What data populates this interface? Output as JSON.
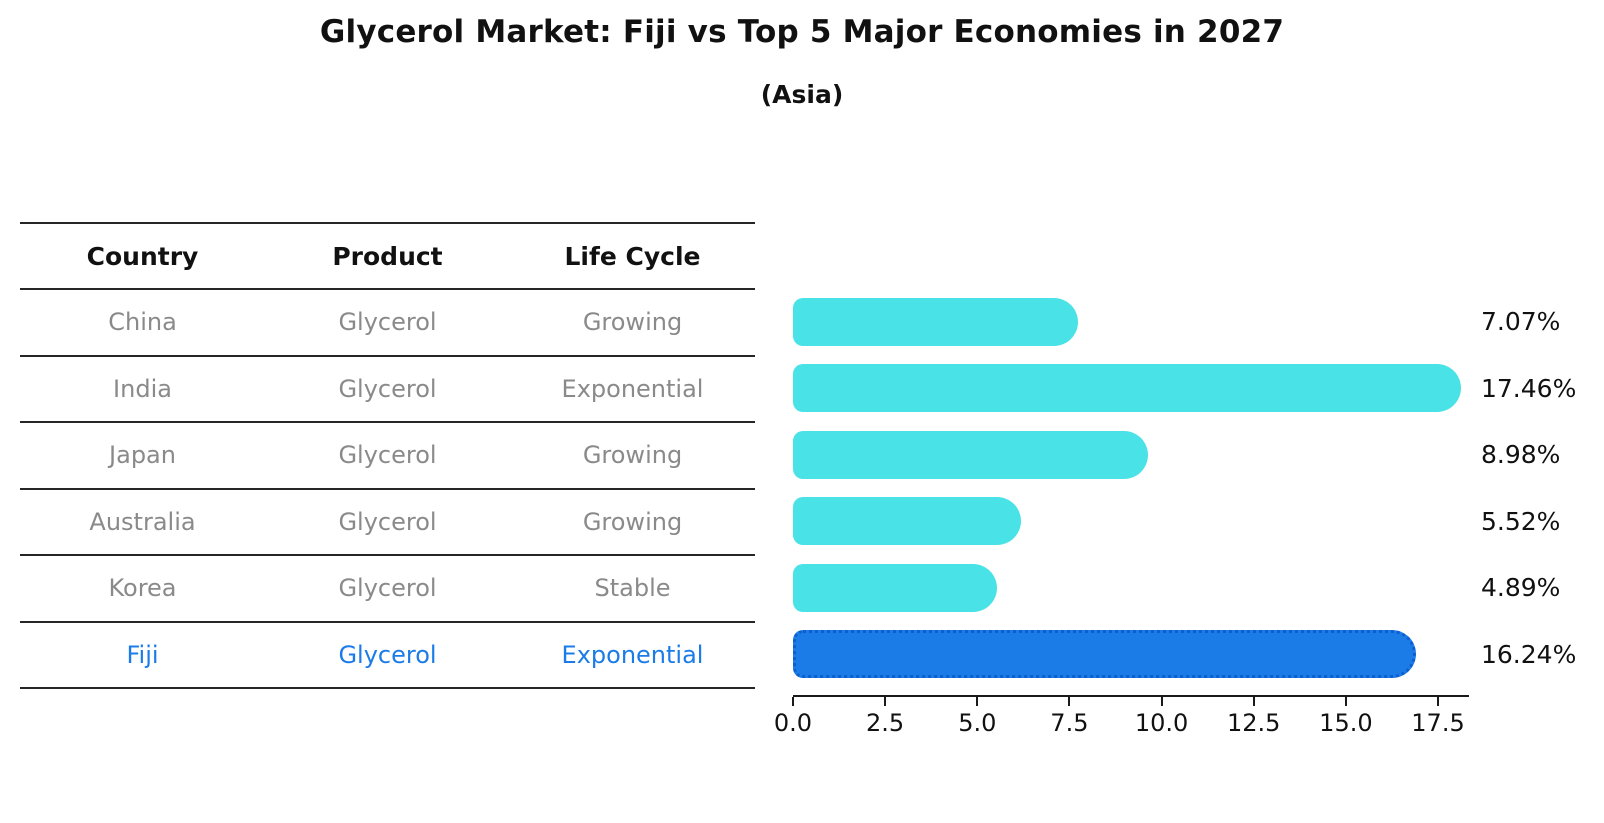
{
  "page": {
    "title": "Glycerol Market: Fiji vs Top 5 Major Economies in 2027",
    "subtitle": "(Asia)"
  },
  "table": {
    "headers": {
      "country": "Country",
      "product": "Product",
      "life_cycle": "Life Cycle"
    },
    "rows": [
      {
        "country": "China",
        "product": "Glycerol",
        "life_cycle": "Growing"
      },
      {
        "country": "India",
        "product": "Glycerol",
        "life_cycle": "Exponential"
      },
      {
        "country": "Japan",
        "product": "Glycerol",
        "life_cycle": "Growing"
      },
      {
        "country": "Australia",
        "product": "Glycerol",
        "life_cycle": "Growing"
      },
      {
        "country": "Korea",
        "product": "Glycerol",
        "life_cycle": "Stable"
      },
      {
        "country": "Fiji",
        "product": "Glycerol",
        "life_cycle": "Exponential"
      }
    ],
    "highlight_row": "Fiji"
  },
  "chart_data": {
    "type": "bar",
    "orientation": "horizontal",
    "title": "Glycerol Market: Fiji vs Top 5 Major Economies in 2027",
    "subtitle": "(Asia)",
    "categories": [
      "China",
      "India",
      "Japan",
      "Australia",
      "Korea",
      "Fiji"
    ],
    "values": [
      7.07,
      17.46,
      8.98,
      5.52,
      4.89,
      16.24
    ],
    "value_labels": [
      "7.07%",
      "17.46%",
      "8.98%",
      "5.52%",
      "4.89%",
      "16.24%"
    ],
    "x_ticks": [
      0.0,
      2.5,
      5.0,
      7.5,
      10.0,
      12.5,
      15.0,
      17.5
    ],
    "x_tick_labels": [
      "0.0",
      "2.5",
      "5.0",
      "7.5",
      "10.0",
      "12.5",
      "15.0",
      "17.5"
    ],
    "xlim": [
      0,
      18.3
    ],
    "grid": false,
    "legend": false,
    "highlight_index": 5,
    "colors": {
      "bar": "#49E2E6",
      "highlight_bar": "#1B7CE8",
      "highlight_border": "#0C5FCE",
      "highlight_text": "#1B7CE8",
      "row_text": "#8A8A8A",
      "header_text": "#111111",
      "axis": "#1a1a1a"
    }
  }
}
